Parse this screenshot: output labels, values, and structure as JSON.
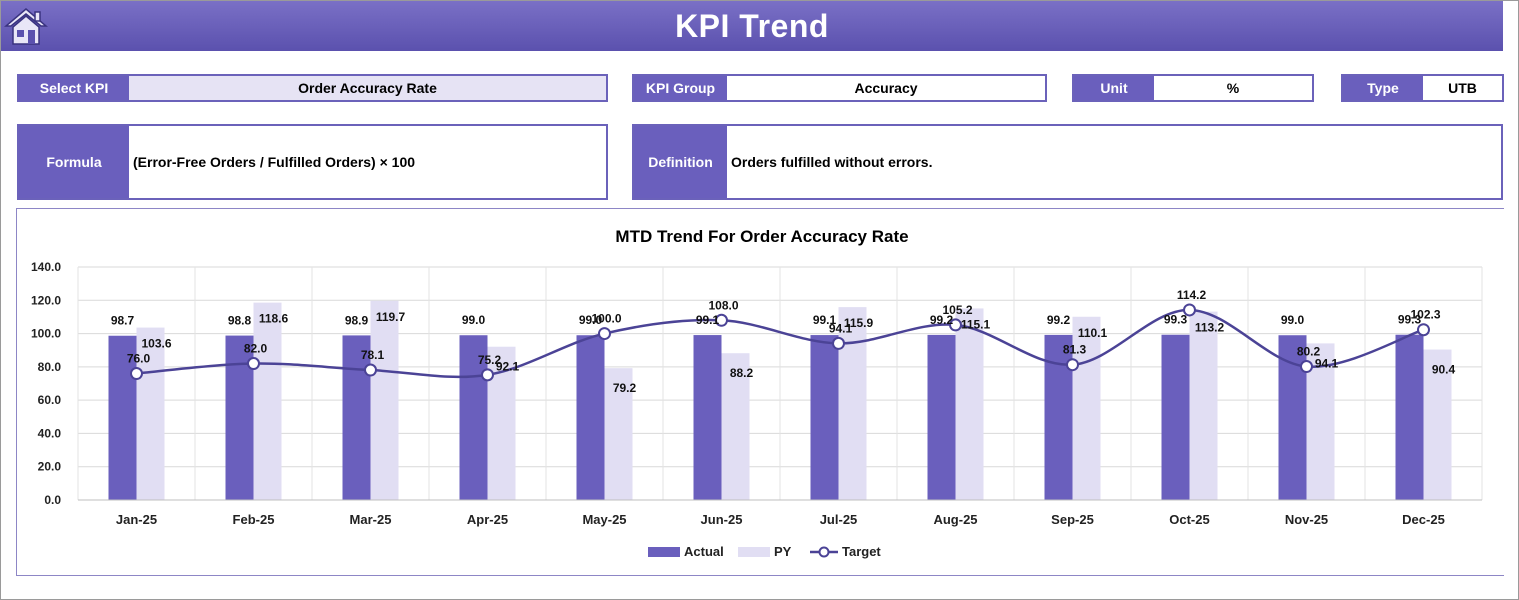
{
  "header": {
    "title": "KPI Trend",
    "home_icon": "home-icon"
  },
  "fields": {
    "select_kpi": {
      "label": "Select KPI",
      "value": "Order Accuracy Rate"
    },
    "kpi_group": {
      "label": "KPI Group",
      "value": "Accuracy"
    },
    "unit": {
      "label": "Unit",
      "value": "%"
    },
    "type": {
      "label": "Type",
      "value": "UTB"
    },
    "formula": {
      "label": "Formula",
      "value": "(Error-Free Orders / Fulfilled Orders) × 100"
    },
    "definition": {
      "label": "Definition",
      "value": "Orders fulfilled without errors."
    }
  },
  "colors": {
    "accent": "#6a5fbd",
    "actual": "#6a5fbd",
    "py": "#e1def3",
    "target": "#4b4396"
  },
  "chart_data": {
    "type": "bar",
    "title": "MTD Trend For Order Accuracy Rate",
    "categories": [
      "Jan-25",
      "Feb-25",
      "Mar-25",
      "Apr-25",
      "May-25",
      "Jun-25",
      "Jul-25",
      "Aug-25",
      "Sep-25",
      "Oct-25",
      "Nov-25",
      "Dec-25"
    ],
    "series": [
      {
        "name": "Actual",
        "kind": "bar",
        "values": [
          98.7,
          98.8,
          98.9,
          99.0,
          99.0,
          99.1,
          99.1,
          99.2,
          99.2,
          99.3,
          99.0,
          99.3
        ]
      },
      {
        "name": "PY",
        "kind": "bar",
        "values": [
          103.6,
          118.6,
          119.7,
          92.1,
          79.2,
          88.2,
          115.9,
          115.1,
          110.1,
          113.2,
          94.1,
          90.4
        ]
      },
      {
        "name": "Target",
        "kind": "line",
        "values": [
          76.0,
          82.0,
          78.1,
          75.2,
          100.0,
          108.0,
          94.1,
          105.2,
          81.3,
          114.2,
          80.2,
          102.3
        ]
      }
    ],
    "ylim": [
      0,
      140
    ],
    "yticks": [
      "0.0",
      "20.0",
      "40.0",
      "60.0",
      "80.0",
      "100.0",
      "120.0",
      "140.0"
    ],
    "grid": true,
    "legend": "bottom"
  }
}
